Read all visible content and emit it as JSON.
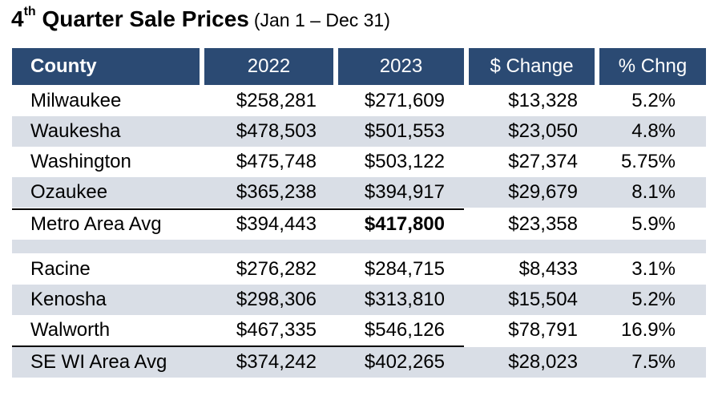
{
  "title": {
    "main": "Quarter Sale Prices",
    "superscript": "th",
    "number": "4",
    "sub": "(Jan 1 – Dec 31)"
  },
  "headers": [
    "County",
    "2022",
    "2023",
    "$ Change",
    "% Chng"
  ],
  "rows": [
    {
      "county": "Milwaukee",
      "y2022": "$258,281",
      "y2023": "$271,609",
      "change": "$13,328",
      "pct": "5.2%"
    },
    {
      "county": "Waukesha",
      "y2022": "$478,503",
      "y2023": "$501,553",
      "change": "$23,050",
      "pct": "4.8%"
    },
    {
      "county": "Washington",
      "y2022": "$475,748",
      "y2023": "$503,122",
      "change": "$27,374",
      "pct": "5.75%"
    },
    {
      "county": "Ozaukee",
      "y2022": "$365,238",
      "y2023": "$394,917",
      "change": "$29,679",
      "pct": "8.1%"
    },
    {
      "county": "Metro Area Avg",
      "y2022": "$394,443",
      "y2023": "$417,800",
      "change": "$23,358",
      "pct": "5.9%"
    },
    {
      "county": "Racine",
      "y2022": "$276,282",
      "y2023": "$284,715",
      "change": "$8,433",
      "pct": "3.1%"
    },
    {
      "county": "Kenosha",
      "y2022": "$298,306",
      "y2023": "$313,810",
      "change": "$15,504",
      "pct": "5.2%"
    },
    {
      "county": "Walworth",
      "y2022": "$467,335",
      "y2023": "$546,126",
      "change": "$78,791",
      "pct": "16.9%"
    },
    {
      "county": "SE WI Area Avg",
      "y2022": "$374,242",
      "y2023": "$402,265",
      "change": "$28,023",
      "pct": "7.5%"
    }
  ],
  "colors": {
    "header_bg": "#2b4a73",
    "alt_row_bg": "#d9dee6",
    "header_text": "#ffffff"
  }
}
